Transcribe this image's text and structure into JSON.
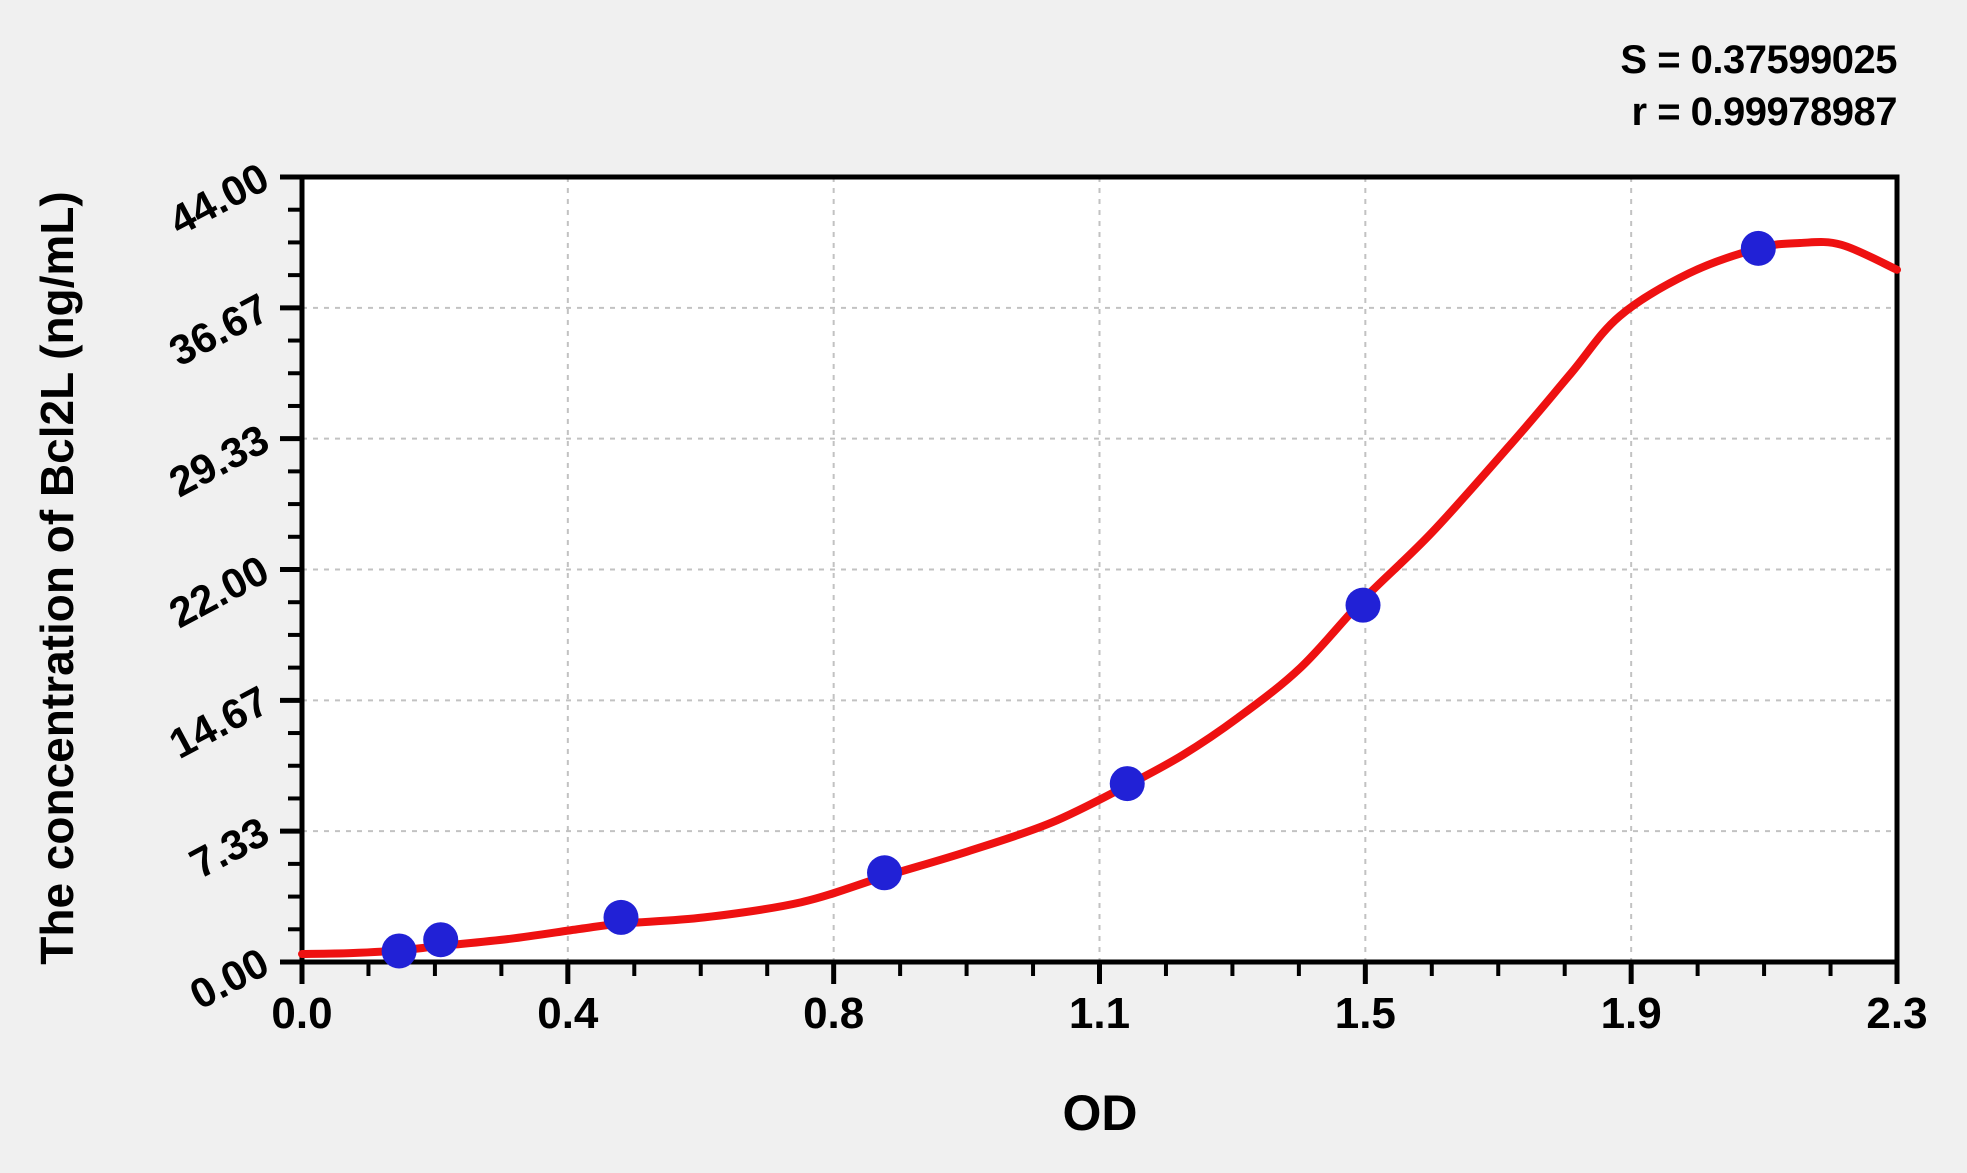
{
  "page": {
    "background": "#f0f0f0"
  },
  "stats": {
    "s_line": "S = 0.37599025",
    "r_line": "r = 0.99978987"
  },
  "axes": {
    "x_title": "OD",
    "y_title": "The concentration of Bcl2L (ng/mL)"
  },
  "chart_data": {
    "type": "scatter",
    "title": "",
    "xlabel": "OD",
    "ylabel": "The concentration of Bcl2L (ng/mL)",
    "xlim": [
      0,
      2.3
    ],
    "ylim": [
      0,
      44
    ],
    "grid": true,
    "legend": "none",
    "x_tick_labels": [
      "0.0",
      "0.4",
      "0.8",
      "1.1",
      "1.5",
      "1.9",
      "2.3"
    ],
    "y_tick_labels": [
      "0.00",
      "7.33",
      "14.67",
      "22.00",
      "29.33",
      "36.67",
      "44.00"
    ],
    "minor_divisions_per_major": 4,
    "annotations": [
      "S = 0.37599025",
      "r = 0.99978987"
    ],
    "series": [
      {
        "name": "standard-points",
        "type": "scatter",
        "points": [
          [
            0.14,
            0.62
          ],
          [
            0.2,
            1.25
          ],
          [
            0.46,
            2.5
          ],
          [
            0.84,
            5
          ],
          [
            1.19,
            10
          ],
          [
            1.53,
            20
          ],
          [
            2.1,
            40
          ]
        ]
      },
      {
        "name": "fitted-curve",
        "type": "line",
        "points": [
          [
            0.0,
            0.45
          ],
          [
            0.07,
            0.5
          ],
          [
            0.14,
            0.65
          ],
          [
            0.2,
            0.9
          ],
          [
            0.3,
            1.3
          ],
          [
            0.4,
            1.85
          ],
          [
            0.46,
            2.15
          ],
          [
            0.58,
            2.5
          ],
          [
            0.72,
            3.35
          ],
          [
            0.84,
            4.8
          ],
          [
            0.96,
            6.2
          ],
          [
            1.08,
            7.8
          ],
          [
            1.19,
            9.9
          ],
          [
            1.27,
            11.6
          ],
          [
            1.35,
            13.7
          ],
          [
            1.44,
            16.5
          ],
          [
            1.53,
            20.3
          ],
          [
            1.63,
            24.1
          ],
          [
            1.75,
            29.33
          ],
          [
            1.83,
            33.0
          ],
          [
            1.9,
            36.2
          ],
          [
            2.0,
            38.6
          ],
          [
            2.1,
            40.0
          ],
          [
            2.16,
            40.3
          ],
          [
            2.22,
            40.2
          ],
          [
            2.3,
            38.8
          ]
        ]
      }
    ],
    "colors": {
      "curve": "#ee1111",
      "points": "#2121d6",
      "grid": "#c2c2c2",
      "axis": "#000000",
      "plot_background": "#ffffff",
      "page_background": "#f0f0f0",
      "text": "#000000"
    }
  }
}
